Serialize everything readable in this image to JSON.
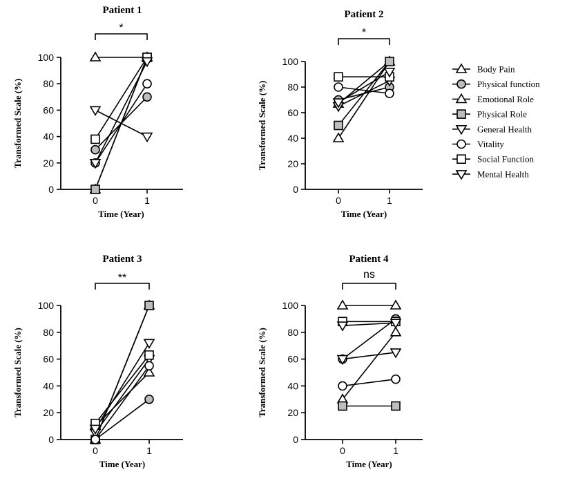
{
  "legend": [
    {
      "name": "Body Pain",
      "marker": "triangle-up",
      "fill": "#ffffff"
    },
    {
      "name": "Physical function",
      "marker": "circle",
      "fill": "#bdbdbd"
    },
    {
      "name": "Emotional Role",
      "marker": "triangle-up",
      "fill": "#ffffff"
    },
    {
      "name": "Physical Role",
      "marker": "square",
      "fill": "#bdbdbd"
    },
    {
      "name": "General Health",
      "marker": "triangle-down",
      "fill": "#ffffff"
    },
    {
      "name": "Vitality",
      "marker": "circle",
      "fill": "#ffffff"
    },
    {
      "name": "Social Function",
      "marker": "square",
      "fill": "#ffffff"
    },
    {
      "name": "Mental Health",
      "marker": "triangle-down",
      "fill": "#ffffff"
    }
  ],
  "chart_data": [
    {
      "type": "line",
      "title": "Patient 1",
      "xlabel": "Time (Year)",
      "ylabel": "Transformed Scale (%)",
      "x": [
        "0",
        "1"
      ],
      "ylim": [
        0,
        100
      ],
      "yticks": [
        "0",
        "20",
        "40",
        "60",
        "80",
        "100"
      ],
      "significance": "*",
      "series": [
        {
          "name": "Body Pain",
          "values": [
            100,
            100
          ]
        },
        {
          "name": "Physical function",
          "values": [
            30,
            70
          ]
        },
        {
          "name": "Emotional Role",
          "values": [
            0,
            100
          ]
        },
        {
          "name": "Physical Role",
          "values": [
            0,
            100
          ]
        },
        {
          "name": "General Health",
          "values": [
            60,
            40
          ]
        },
        {
          "name": "Vitality",
          "values": [
            20,
            80
          ]
        },
        {
          "name": "Social Function",
          "values": [
            38,
            100
          ]
        },
        {
          "name": "Mental Health",
          "values": [
            20,
            97
          ]
        }
      ]
    },
    {
      "type": "line",
      "title": "Patient 2",
      "xlabel": "Time (Year)",
      "ylabel": "Transformed Scale (%)",
      "x": [
        "0",
        "1"
      ],
      "ylim": [
        0,
        100
      ],
      "yticks": [
        "0",
        "20",
        "40",
        "60",
        "80",
        "100"
      ],
      "significance": "*",
      "series": [
        {
          "name": "Body Pain",
          "values": [
            40,
            100
          ]
        },
        {
          "name": "Physical function",
          "values": [
            70,
            80
          ]
        },
        {
          "name": "Emotional Role",
          "values": [
            67,
            100
          ]
        },
        {
          "name": "Physical Role",
          "values": [
            50,
            100
          ]
        },
        {
          "name": "General Health",
          "values": [
            65,
            85
          ]
        },
        {
          "name": "Vitality",
          "values": [
            80,
            75
          ]
        },
        {
          "name": "Social Function",
          "values": [
            88,
            88
          ]
        },
        {
          "name": "Mental Health",
          "values": [
            68,
            92
          ]
        }
      ]
    },
    {
      "type": "line",
      "title": "Patient 3",
      "xlabel": "Time (Year)",
      "ylabel": "Transformed Scale (%)",
      "x": [
        "0",
        "1"
      ],
      "ylim": [
        0,
        100
      ],
      "yticks": [
        "0",
        "20",
        "40",
        "60",
        "80",
        "100"
      ],
      "significance": "**",
      "series": [
        {
          "name": "Body Pain",
          "values": [
            10,
            50
          ]
        },
        {
          "name": "Physical function",
          "values": [
            0,
            30
          ]
        },
        {
          "name": "Emotional Role",
          "values": [
            0,
            100
          ]
        },
        {
          "name": "Physical Role",
          "values": [
            0,
            100
          ]
        },
        {
          "name": "General Health",
          "values": [
            5,
            60
          ]
        },
        {
          "name": "Vitality",
          "values": [
            0,
            55
          ]
        },
        {
          "name": "Social Function",
          "values": [
            12,
            63
          ]
        },
        {
          "name": "Mental Health",
          "values": [
            8,
            72
          ]
        }
      ]
    },
    {
      "type": "line",
      "title": "Patient 4",
      "xlabel": "Time (Year)",
      "ylabel": "Transformed Scale (%)",
      "x": [
        "0",
        "1"
      ],
      "ylim": [
        0,
        100
      ],
      "yticks": [
        "0",
        "20",
        "40",
        "60",
        "80",
        "100"
      ],
      "significance": "ns",
      "series": [
        {
          "name": "Body Pain",
          "values": [
            30,
            80
          ]
        },
        {
          "name": "Physical function",
          "values": [
            60,
            90
          ]
        },
        {
          "name": "Emotional Role",
          "values": [
            100,
            100
          ]
        },
        {
          "name": "Physical Role",
          "values": [
            25,
            25
          ]
        },
        {
          "name": "General Health",
          "values": [
            60,
            65
          ]
        },
        {
          "name": "Vitality",
          "values": [
            40,
            45
          ]
        },
        {
          "name": "Social Function",
          "values": [
            88,
            88
          ]
        },
        {
          "name": "Mental Health",
          "values": [
            85,
            87
          ]
        }
      ]
    }
  ]
}
